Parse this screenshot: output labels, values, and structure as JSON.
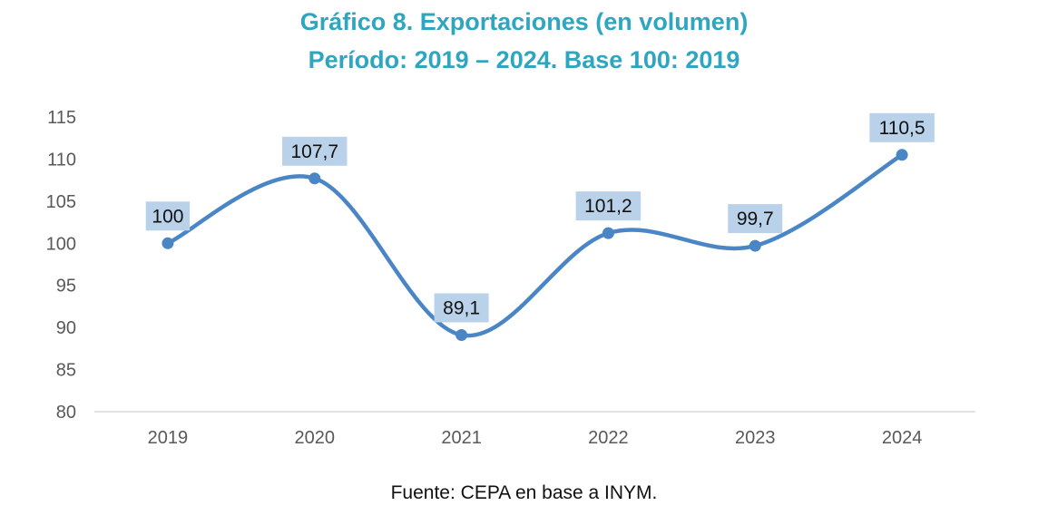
{
  "title": "Gráfico 8. Exportaciones (en volumen)",
  "subtitle": "Período: 2019 – 2024. Base 100: 2019",
  "source": "Fuente: CEPA en base a INYM.",
  "chart_data": {
    "type": "line",
    "categories": [
      "2019",
      "2020",
      "2021",
      "2022",
      "2023",
      "2024"
    ],
    "series": [
      {
        "values": [
          100,
          107.7,
          89.1,
          101.2,
          99.7,
          110.5
        ]
      }
    ],
    "data_labels": [
      "100",
      "107,7",
      "89,1",
      "101,2",
      "99,7",
      "110,5"
    ],
    "ylim": [
      80,
      115
    ],
    "yticks": [
      "80",
      "85",
      "90",
      "95",
      "100",
      "105",
      "110",
      "115"
    ],
    "smooth": true,
    "grid": false,
    "line_color": "#4a86c5",
    "label_bg_color": "#b9d2ea"
  }
}
